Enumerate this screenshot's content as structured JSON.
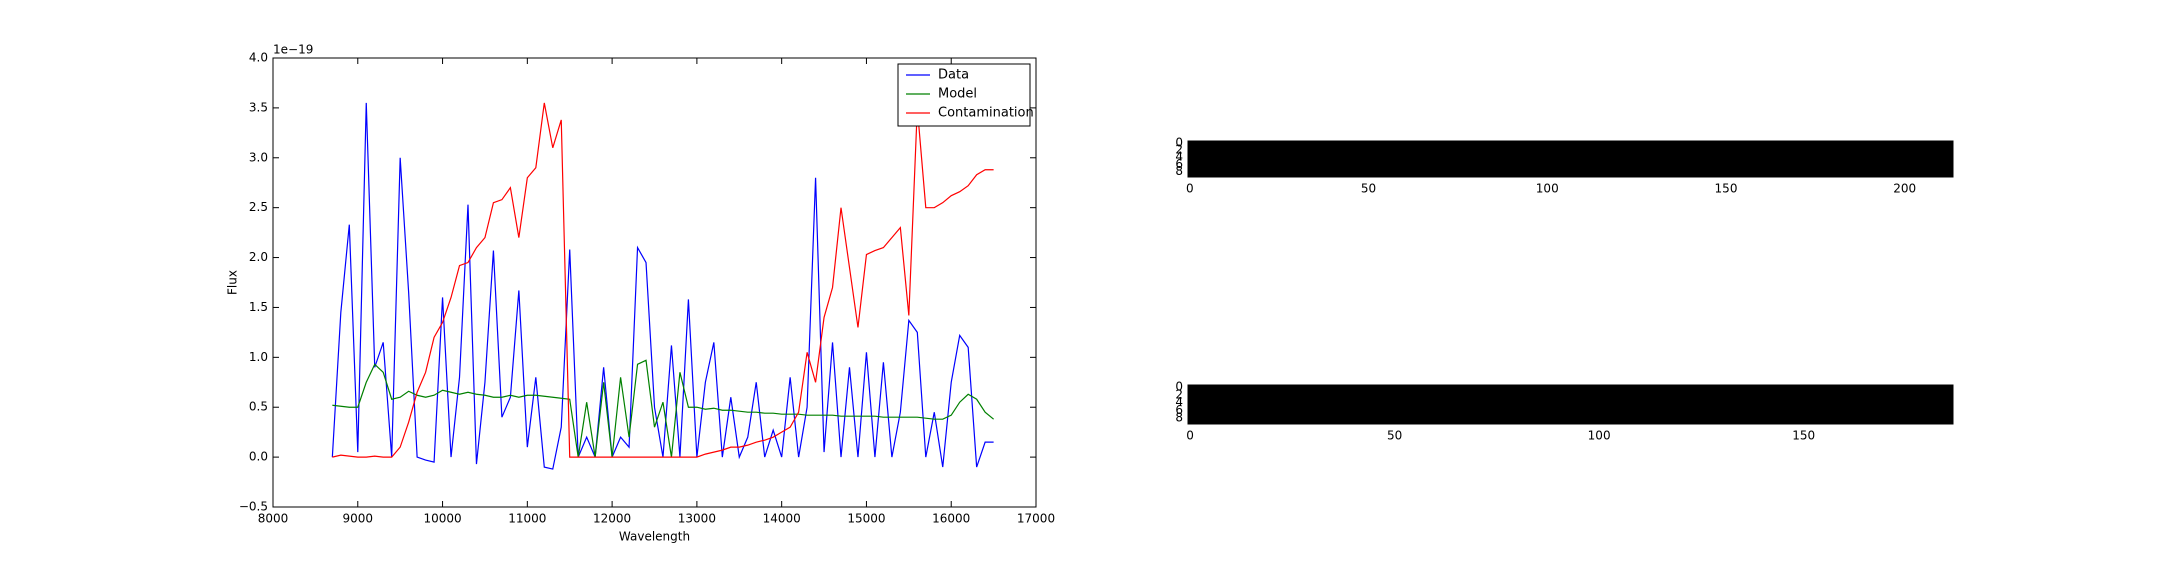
{
  "chart_data": [
    {
      "type": "line",
      "x_label": "Wavelength",
      "y_label": "Flux",
      "offset_text": "1e−19",
      "xlim": [
        8000,
        17000
      ],
      "xticks": [
        8000,
        9000,
        10000,
        11000,
        12000,
        13000,
        14000,
        15000,
        16000,
        17000
      ],
      "ylim": [
        -0.5,
        4.0
      ],
      "yticks": [
        {
          "value": -0.5,
          "label": "−0.5"
        },
        {
          "value": 0,
          "label": "0.0"
        },
        {
          "value": 0.5,
          "label": "0.5"
        },
        {
          "value": 1,
          "label": "1.0"
        },
        {
          "value": 1.5,
          "label": "1.5"
        },
        {
          "value": 2,
          "label": "2.0"
        },
        {
          "value": 2.5,
          "label": "2.5"
        },
        {
          "value": 3,
          "label": "3.0"
        },
        {
          "value": 3.5,
          "label": "3.5"
        },
        {
          "value": 4,
          "label": "4.0"
        }
      ],
      "legend": "upper right",
      "x": [
        8700,
        8800,
        8900,
        9000,
        9100,
        9200,
        9300,
        9400,
        9500,
        9600,
        9700,
        9800,
        9900,
        10000,
        10100,
        10200,
        10300,
        10400,
        10500,
        10600,
        10700,
        10800,
        10900,
        11000,
        11100,
        11200,
        11300,
        11400,
        11500,
        11600,
        11700,
        11800,
        11900,
        12000,
        12100,
        12200,
        12300,
        12400,
        12500,
        12600,
        12700,
        12800,
        12900,
        13000,
        13100,
        13200,
        13300,
        13400,
        13500,
        13600,
        13700,
        13800,
        13900,
        14000,
        14100,
        14200,
        14300,
        14400,
        14500,
        14600,
        14700,
        14800,
        14900,
        15000,
        15100,
        15200,
        15300,
        15400,
        15500,
        15600,
        15700,
        15800,
        15900,
        16000,
        16100,
        16200,
        16300,
        16400,
        16500
      ],
      "series": [
        {
          "name": "Data",
          "color": "#0000ff",
          "values": [
            0.0,
            1.45,
            2.33,
            0.05,
            3.55,
            0.9,
            1.15,
            0.0,
            3.0,
            1.65,
            0.0,
            -0.03,
            -0.05,
            1.6,
            0.0,
            0.8,
            2.53,
            -0.07,
            0.75,
            2.07,
            0.4,
            0.6,
            1.67,
            0.1,
            0.8,
            -0.1,
            -0.12,
            0.3,
            2.08,
            0.0,
            0.2,
            0.0,
            0.9,
            0.0,
            0.2,
            0.1,
            2.1,
            1.95,
            0.5,
            0.0,
            1.12,
            0.0,
            1.58,
            0.0,
            0.75,
            1.15,
            0.0,
            0.6,
            0.0,
            0.2,
            0.75,
            0.0,
            0.27,
            0.0,
            0.8,
            0.0,
            0.5,
            2.8,
            0.05,
            1.15,
            0.0,
            0.9,
            0.0,
            1.05,
            0.0,
            0.95,
            0.0,
            0.45,
            1.37,
            1.25,
            0.0,
            0.45,
            -0.1,
            0.75,
            1.22,
            1.1,
            -0.1,
            0.15,
            0.15
          ]
        },
        {
          "name": "Model",
          "color": "#008000",
          "values": [
            0.52,
            0.51,
            0.5,
            0.5,
            0.75,
            0.93,
            0.85,
            0.58,
            0.6,
            0.66,
            0.62,
            0.6,
            0.62,
            0.67,
            0.65,
            0.63,
            0.65,
            0.63,
            0.62,
            0.6,
            0.6,
            0.62,
            0.6,
            0.62,
            0.62,
            0.61,
            0.6,
            0.59,
            0.58,
            0.0,
            0.55,
            0.0,
            0.75,
            0.0,
            0.8,
            0.2,
            0.93,
            0.97,
            0.3,
            0.55,
            0.0,
            0.85,
            0.5,
            0.5,
            0.48,
            0.49,
            0.47,
            0.47,
            0.46,
            0.45,
            0.45,
            0.44,
            0.44,
            0.43,
            0.43,
            0.43,
            0.42,
            0.42,
            0.42,
            0.42,
            0.41,
            0.41,
            0.41,
            0.41,
            0.41,
            0.4,
            0.4,
            0.4,
            0.4,
            0.4,
            0.39,
            0.38,
            0.38,
            0.42,
            0.55,
            0.63,
            0.58,
            0.45,
            0.38
          ]
        },
        {
          "name": "Contamination",
          "color": "#ff0000",
          "values": [
            0.0,
            0.02,
            0.01,
            0.0,
            0.0,
            0.01,
            0.0,
            0.0,
            0.1,
            0.35,
            0.65,
            0.85,
            1.2,
            1.35,
            1.6,
            1.92,
            1.95,
            2.1,
            2.2,
            2.55,
            2.58,
            2.7,
            2.2,
            2.8,
            2.9,
            3.55,
            3.1,
            3.38,
            0.0,
            0.0,
            0.0,
            0.0,
            0.0,
            0.0,
            0.0,
            0.0,
            0.0,
            0.0,
            0.0,
            0.0,
            0.0,
            0.0,
            0.0,
            0.0,
            0.03,
            0.05,
            0.07,
            0.1,
            0.1,
            0.12,
            0.15,
            0.17,
            0.2,
            0.25,
            0.3,
            0.45,
            1.05,
            0.75,
            1.4,
            1.7,
            2.5,
            1.9,
            1.3,
            2.03,
            2.07,
            2.1,
            2.2,
            2.3,
            1.42,
            3.5,
            2.5,
            2.5,
            2.55,
            2.62,
            2.66,
            2.72,
            2.83,
            2.88,
            2.88
          ]
        }
      ]
    },
    {
      "type": "image",
      "xlim": [
        -0.5,
        213.5
      ],
      "xticks": [
        0,
        50,
        100,
        150,
        200
      ],
      "ylim": [
        9.5,
        -0.5
      ],
      "yticks": [
        0,
        2,
        4,
        6,
        8
      ]
    },
    {
      "type": "image",
      "xlim": [
        -0.5,
        186.5
      ],
      "xticks": [
        0,
        50,
        100,
        150
      ],
      "ylim": [
        9.5,
        -0.5
      ],
      "yticks": [
        0,
        2,
        4,
        6,
        8
      ]
    }
  ]
}
